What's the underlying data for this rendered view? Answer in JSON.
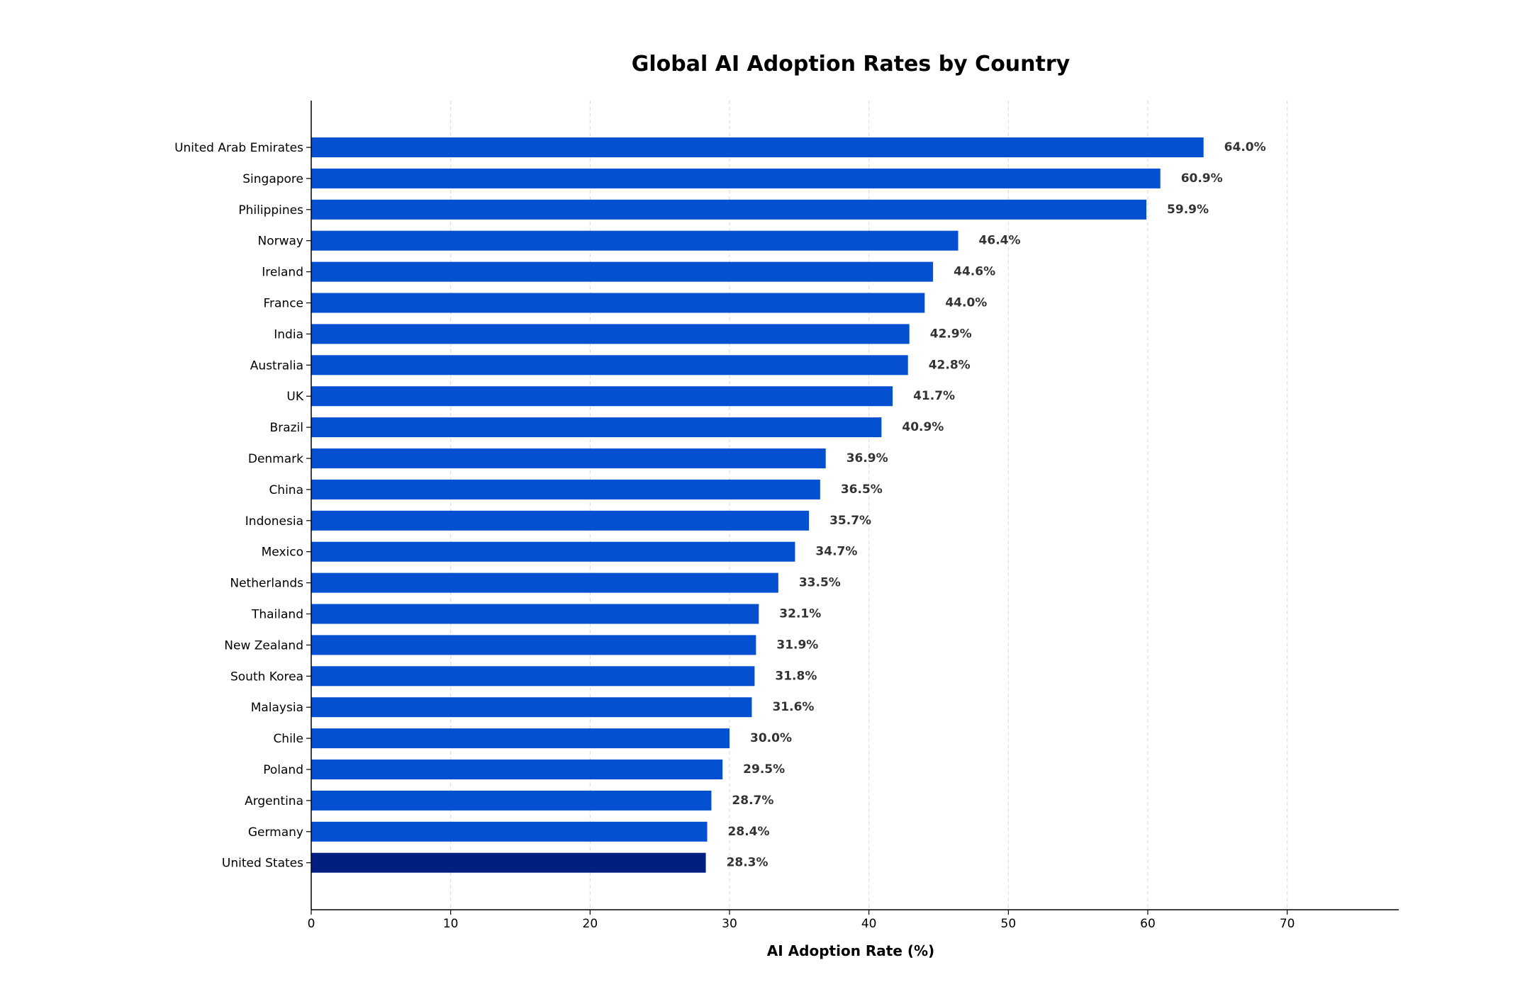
{
  "chart_data": {
    "type": "bar",
    "orientation": "horizontal",
    "title": "Global AI Adoption Rates by Country",
    "xlabel": "AI Adoption Rate (%)",
    "ylabel": "",
    "xlim": [
      0,
      78
    ],
    "xticks": [
      0,
      10,
      20,
      30,
      40,
      50,
      60,
      70
    ],
    "grid": "vertical dashed",
    "legend": "none",
    "colors": {
      "bar": "#0450d0",
      "highlight": "#001f80",
      "grid": "#d9d9d9",
      "axis": "#000000",
      "value_label": "#333333"
    },
    "highlight_category": "United States",
    "value_format_suffix": "%",
    "categories": [
      "United Arab Emirates",
      "Singapore",
      "Philippines",
      "Norway",
      "Ireland",
      "France",
      "India",
      "Australia",
      "UK",
      "Brazil",
      "Denmark",
      "China",
      "Indonesia",
      "Mexico",
      "Netherlands",
      "Thailand",
      "New Zealand",
      "South Korea",
      "Malaysia",
      "Chile",
      "Poland",
      "Argentina",
      "Germany",
      "United States"
    ],
    "values": [
      64.0,
      60.9,
      59.9,
      46.4,
      44.6,
      44.0,
      42.9,
      42.8,
      41.7,
      40.9,
      36.9,
      36.5,
      35.7,
      34.7,
      33.5,
      32.1,
      31.9,
      31.8,
      31.6,
      30.0,
      29.5,
      28.7,
      28.4,
      28.3
    ],
    "value_labels": [
      "64.0%",
      "60.9%",
      "59.9%",
      "46.4%",
      "44.6%",
      "44.0%",
      "42.9%",
      "42.8%",
      "41.7%",
      "40.9%",
      "36.9%",
      "36.5%",
      "35.7%",
      "34.7%",
      "33.5%",
      "32.1%",
      "31.9%",
      "31.8%",
      "31.6%",
      "30.0%",
      "29.5%",
      "28.7%",
      "28.4%",
      "28.3%"
    ]
  }
}
